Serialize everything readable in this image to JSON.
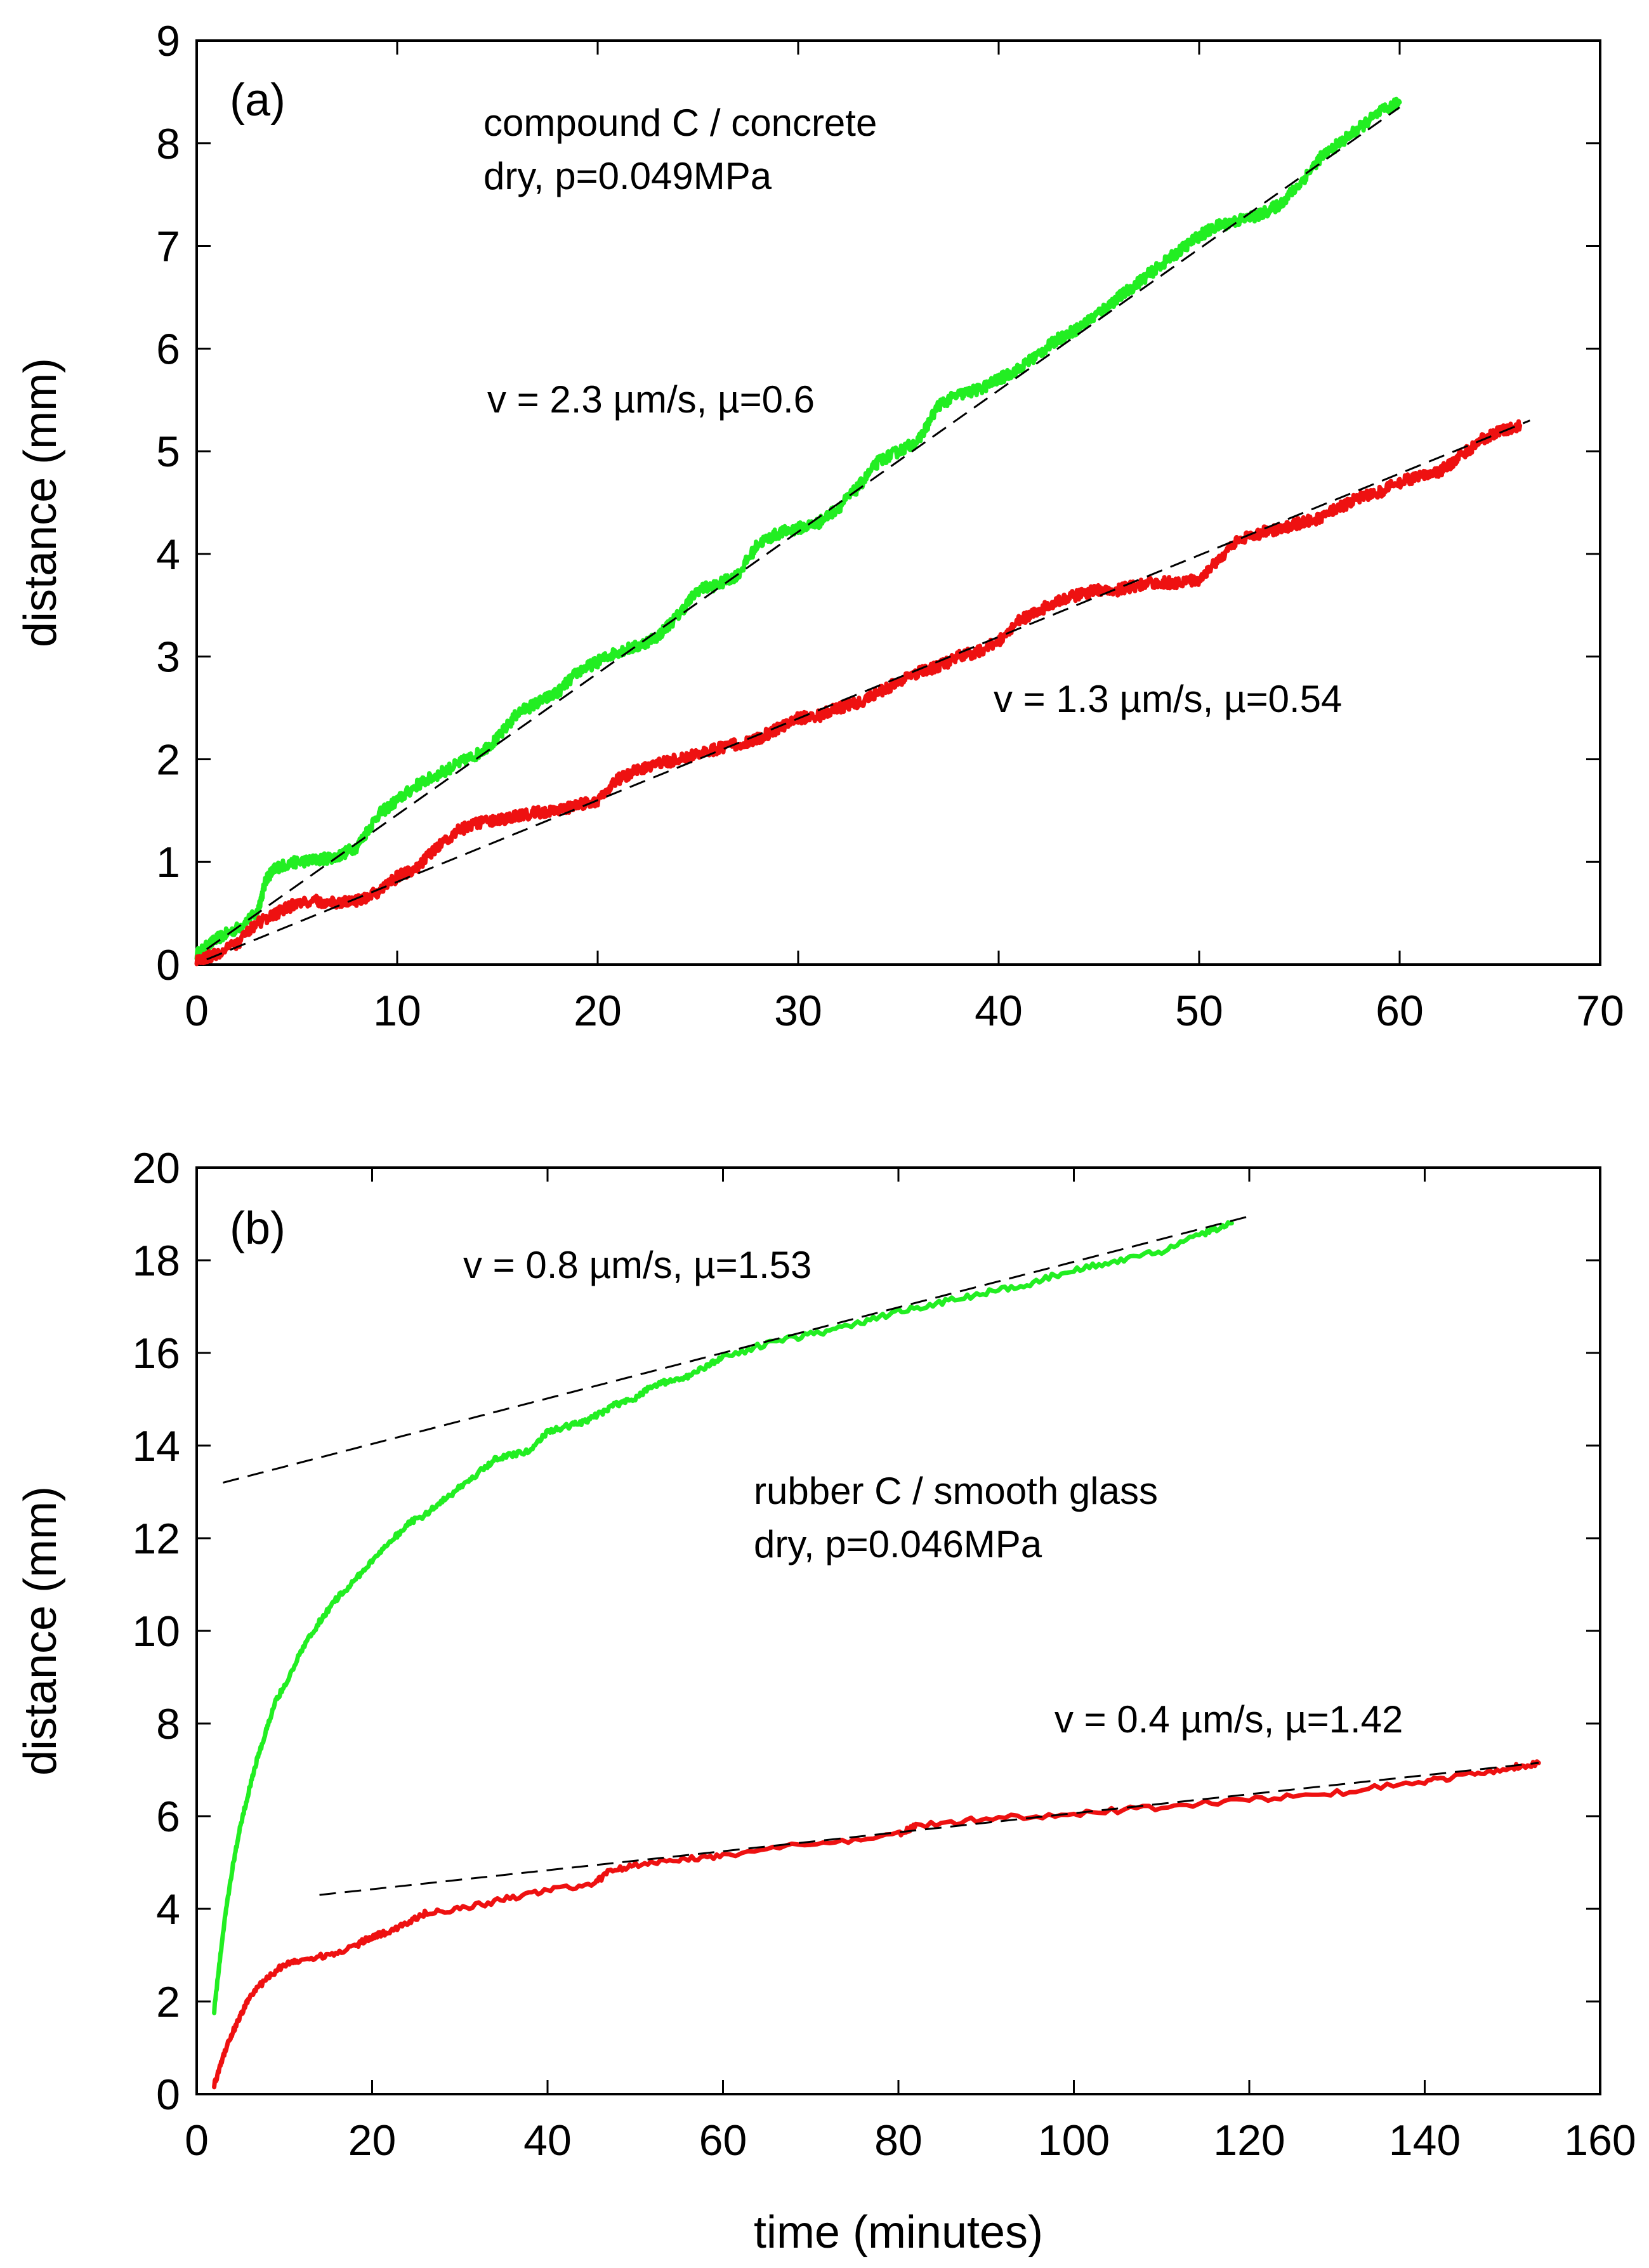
{
  "colors": {
    "green_series": "#22ee22",
    "red_series": "#ee1111",
    "fit_line": "#000000"
  },
  "chart_data": [
    {
      "type": "line",
      "panel_label": "(a)",
      "title": "",
      "xlabel": "",
      "ylabel": "distance  (mm)",
      "xlim": [
        0,
        70
      ],
      "ylim": [
        0,
        9
      ],
      "xticks": [
        "0",
        "10",
        "20",
        "30",
        "40",
        "50",
        "60",
        "70"
      ],
      "yticks": [
        "0",
        "1",
        "2",
        "3",
        "4",
        "5",
        "6",
        "7",
        "8",
        "9"
      ],
      "grid": false,
      "annotations": [
        {
          "name": "condition-line-1",
          "text": "compound C / concrete"
        },
        {
          "name": "condition-line-2",
          "text": "dry, p=0.049MPa"
        },
        {
          "name": "green-fit-label",
          "text": "v = 2.3 µm/s, µ=0.6"
        },
        {
          "name": "red-fit-label",
          "text": "v = 1.3 µm/s, µ=0.54"
        }
      ],
      "series": [
        {
          "name": "green",
          "color": "#22ee22",
          "x": [
            0,
            1,
            2,
            3,
            3.5,
            4,
            5,
            6,
            7,
            8,
            9,
            10,
            11,
            12,
            13,
            14,
            15,
            16,
            17,
            18,
            19,
            20,
            21,
            22,
            23,
            24,
            25,
            26,
            27,
            28,
            29,
            30,
            31,
            32,
            33,
            34,
            35,
            36,
            37,
            38,
            39,
            40,
            41,
            42,
            43,
            44,
            45,
            46,
            47,
            48,
            49,
            50,
            51,
            52,
            53,
            54,
            55,
            56,
            57,
            58,
            59,
            60
          ],
          "y": [
            0.1,
            0.25,
            0.35,
            0.5,
            0.85,
            0.95,
            1.0,
            1.02,
            1.05,
            1.15,
            1.45,
            1.6,
            1.75,
            1.85,
            1.95,
            2.05,
            2.2,
            2.45,
            2.55,
            2.65,
            2.85,
            2.95,
            3.05,
            3.1,
            3.2,
            3.4,
            3.65,
            3.7,
            3.8,
            4.1,
            4.2,
            4.25,
            4.3,
            4.45,
            4.65,
            4.9,
            5.0,
            5.1,
            5.45,
            5.55,
            5.6,
            5.7,
            5.8,
            5.95,
            6.1,
            6.2,
            6.35,
            6.5,
            6.65,
            6.8,
            6.95,
            7.1,
            7.2,
            7.25,
            7.3,
            7.4,
            7.6,
            7.85,
            8.0,
            8.15,
            8.3,
            8.4
          ]
        },
        {
          "name": "red",
          "color": "#ee1111",
          "x": [
            0,
            1,
            2,
            3,
            4,
            5,
            6,
            7,
            8,
            9,
            10,
            11,
            12,
            13,
            14,
            15,
            16,
            17,
            18,
            19,
            20,
            21,
            22,
            23,
            24,
            25,
            26,
            27,
            28,
            29,
            30,
            31,
            32,
            33,
            34,
            35,
            36,
            37,
            38,
            39,
            40,
            41,
            42,
            43,
            44,
            45,
            46,
            47,
            48,
            49,
            50,
            51,
            52,
            53,
            54,
            55,
            56,
            57,
            58,
            59,
            60,
            61,
            62,
            63,
            64,
            65,
            66
          ],
          "y": [
            0.05,
            0.1,
            0.2,
            0.4,
            0.5,
            0.6,
            0.62,
            0.6,
            0.62,
            0.7,
            0.85,
            0.95,
            1.15,
            1.3,
            1.38,
            1.4,
            1.45,
            1.48,
            1.5,
            1.55,
            1.6,
            1.8,
            1.9,
            1.95,
            2.0,
            2.05,
            2.1,
            2.15,
            2.2,
            2.3,
            2.4,
            2.42,
            2.5,
            2.55,
            2.65,
            2.75,
            2.85,
            2.9,
            3.0,
            3.05,
            3.15,
            3.35,
            3.45,
            3.55,
            3.6,
            3.65,
            3.65,
            3.7,
            3.72,
            3.72,
            3.75,
            3.95,
            4.15,
            4.2,
            4.25,
            4.3,
            4.35,
            4.45,
            4.55,
            4.6,
            4.7,
            4.75,
            4.8,
            4.95,
            5.1,
            5.2,
            5.25
          ]
        }
      ],
      "fit_lines": [
        {
          "name": "green-fit",
          "x": [
            0.5,
            60
          ],
          "y": [
            0.15,
            8.35
          ]
        },
        {
          "name": "red-fit",
          "x": [
            0.5,
            66.5
          ],
          "y": [
            0.05,
            5.3
          ]
        }
      ]
    },
    {
      "type": "line",
      "panel_label": "(b)",
      "title": "",
      "xlabel": "time  (minutes)",
      "ylabel": "distance  (mm)",
      "xlim": [
        0,
        160
      ],
      "ylim": [
        0,
        20
      ],
      "xticks": [
        "0",
        "20",
        "40",
        "60",
        "80",
        "100",
        "120",
        "140",
        "160"
      ],
      "yticks": [
        "0",
        "2",
        "4",
        "6",
        "8",
        "10",
        "12",
        "14",
        "16",
        "18",
        "20"
      ],
      "grid": false,
      "annotations": [
        {
          "name": "green-fit-label",
          "text": "v = 0.8 µm/s, µ=1.53"
        },
        {
          "name": "condition-line-1",
          "text": "rubber C / smooth glass"
        },
        {
          "name": "condition-line-2",
          "text": "dry, p=0.046MPa"
        },
        {
          "name": "red-fit-label",
          "text": "v = 0.4 µm/s, µ=1.42"
        }
      ],
      "series": [
        {
          "name": "green",
          "color": "#22ee22",
          "x": [
            2,
            3,
            4,
            5,
            6,
            7,
            8,
            9,
            10,
            12,
            14,
            16,
            18,
            20,
            22,
            24,
            26,
            28,
            30,
            32,
            34,
            36,
            38,
            40,
            42,
            44,
            46,
            48,
            50,
            52,
            54,
            56,
            58,
            60,
            65,
            70,
            75,
            80,
            85,
            90,
            95,
            100,
            105,
            110,
            115,
            118
          ],
          "y": [
            1.8,
            3.5,
            4.8,
            5.8,
            6.6,
            7.3,
            7.9,
            8.5,
            8.8,
            9.6,
            10.2,
            10.7,
            11.1,
            11.5,
            11.9,
            12.3,
            12.5,
            12.8,
            13.1,
            13.4,
            13.7,
            13.8,
            13.9,
            14.3,
            14.4,
            14.5,
            14.7,
            14.9,
            15.0,
            15.3,
            15.4,
            15.5,
            15.7,
            15.9,
            16.2,
            16.4,
            16.6,
            16.9,
            17.1,
            17.3,
            17.5,
            17.8,
            18.0,
            18.2,
            18.6,
            18.8
          ]
        },
        {
          "name": "red",
          "color": "#ee1111",
          "x": [
            2,
            3,
            4,
            5,
            6,
            8,
            10,
            12,
            15,
            18,
            20,
            22,
            24,
            26,
            30,
            35,
            40,
            45,
            47,
            50,
            55,
            60,
            70,
            80,
            82,
            90,
            100,
            110,
            120,
            130,
            140,
            145,
            150,
            153
          ],
          "y": [
            0.2,
            0.8,
            1.3,
            1.7,
            2.1,
            2.5,
            2.8,
            2.9,
            3.0,
            3.2,
            3.4,
            3.5,
            3.7,
            3.9,
            4.0,
            4.2,
            4.4,
            4.5,
            4.8,
            4.95,
            5.05,
            5.15,
            5.4,
            5.6,
            5.8,
            5.95,
            6.05,
            6.2,
            6.35,
            6.5,
            6.75,
            6.9,
            7.05,
            7.15
          ]
        }
      ],
      "fit_lines": [
        {
          "name": "green-fit",
          "x": [
            3,
            120
          ],
          "y": [
            13.2,
            18.95
          ]
        },
        {
          "name": "red-fit",
          "x": [
            14,
            153
          ],
          "y": [
            4.3,
            7.15
          ]
        }
      ]
    }
  ]
}
